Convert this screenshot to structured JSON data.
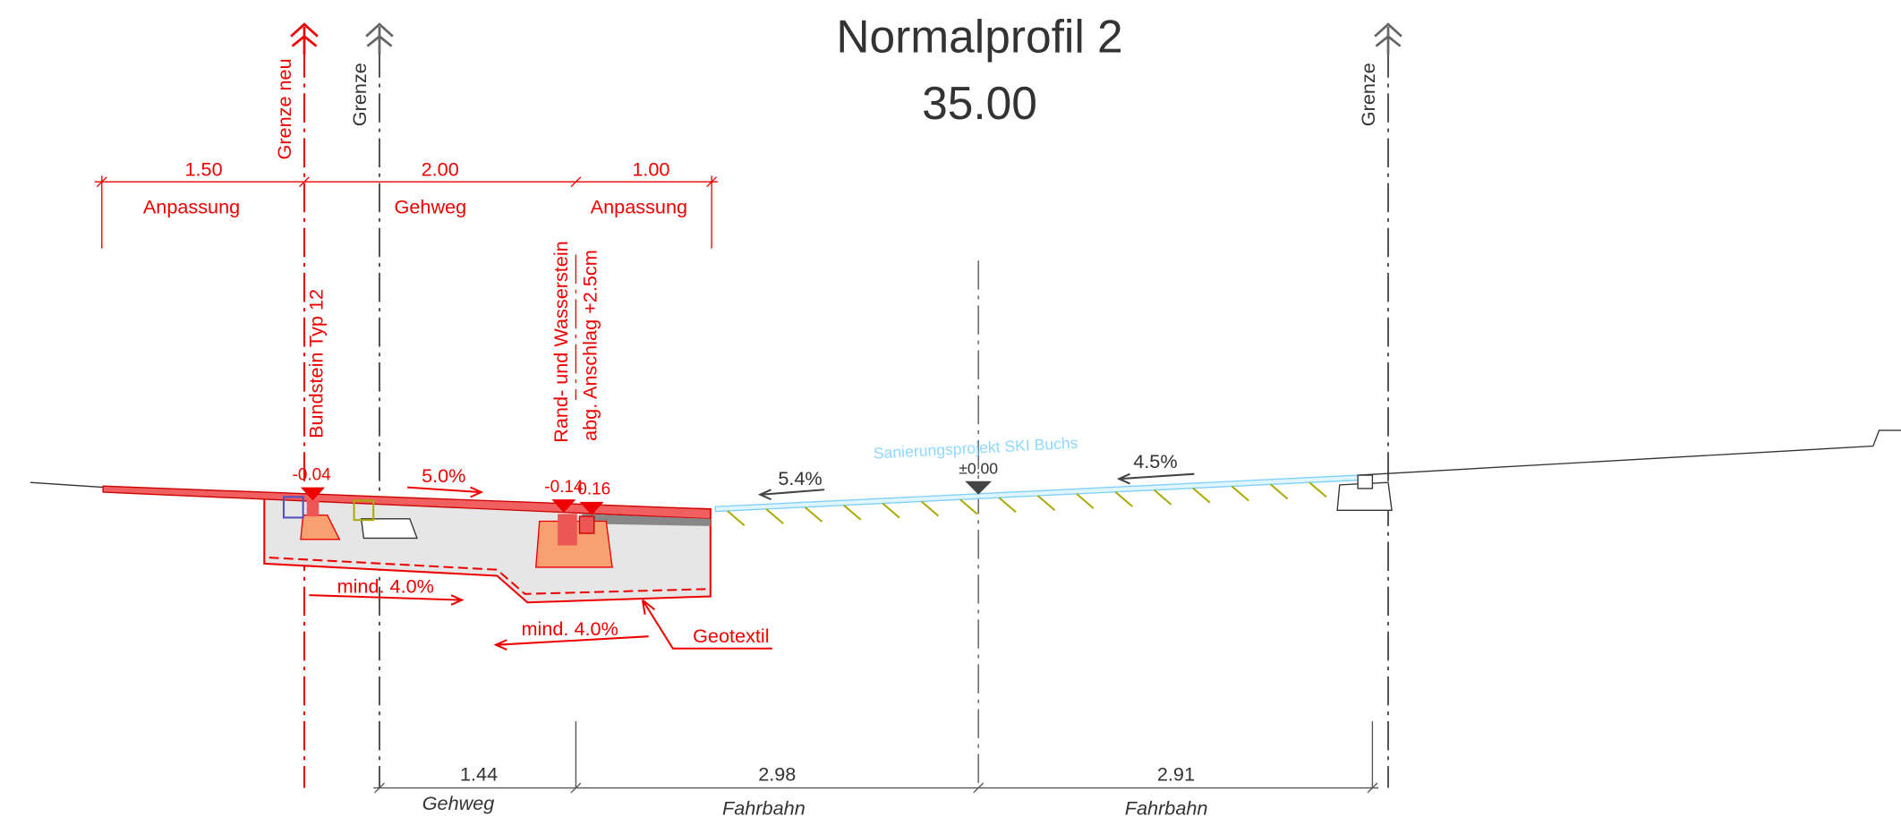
{
  "title": "Normalprofil 2",
  "station": "35.00",
  "boundaries": [
    {
      "label": "Grenze neu"
    },
    {
      "label": "Grenze"
    },
    {
      "label": "Grenze"
    }
  ],
  "top_dimensions": [
    {
      "value": "1.50",
      "label": "Anpassung"
    },
    {
      "value": "2.00",
      "label": "Gehweg"
    },
    {
      "value": "1.00",
      "label": "Anpassung"
    }
  ],
  "bottom_dimensions": [
    {
      "value": "1.44",
      "label": "Gehweg"
    },
    {
      "value": "2.98",
      "label": "Fahrbahn"
    },
    {
      "value": "2.91",
      "label": "Fahrbahn"
    }
  ],
  "annotations": {
    "curb_left": "Bundstein Typ 12",
    "curb_right_1": "Rand- und Wasserstein",
    "curb_right_2": "abg. Anschlag +2.5cm",
    "level_left": "-0.04",
    "slope_sidewalk": "5.0%",
    "level_right_1": "-0.14",
    "level_right_2": "0.16",
    "slope_road_left": "5.4%",
    "level_axis": "±0.00",
    "project": "Sanierungsprojekt SKI Buchs",
    "slope_road_right": "4.5%",
    "slope_base_1": "mind. 4.0%",
    "slope_base_2": "mind. 4.0%",
    "geotextile": "Geotextil"
  }
}
